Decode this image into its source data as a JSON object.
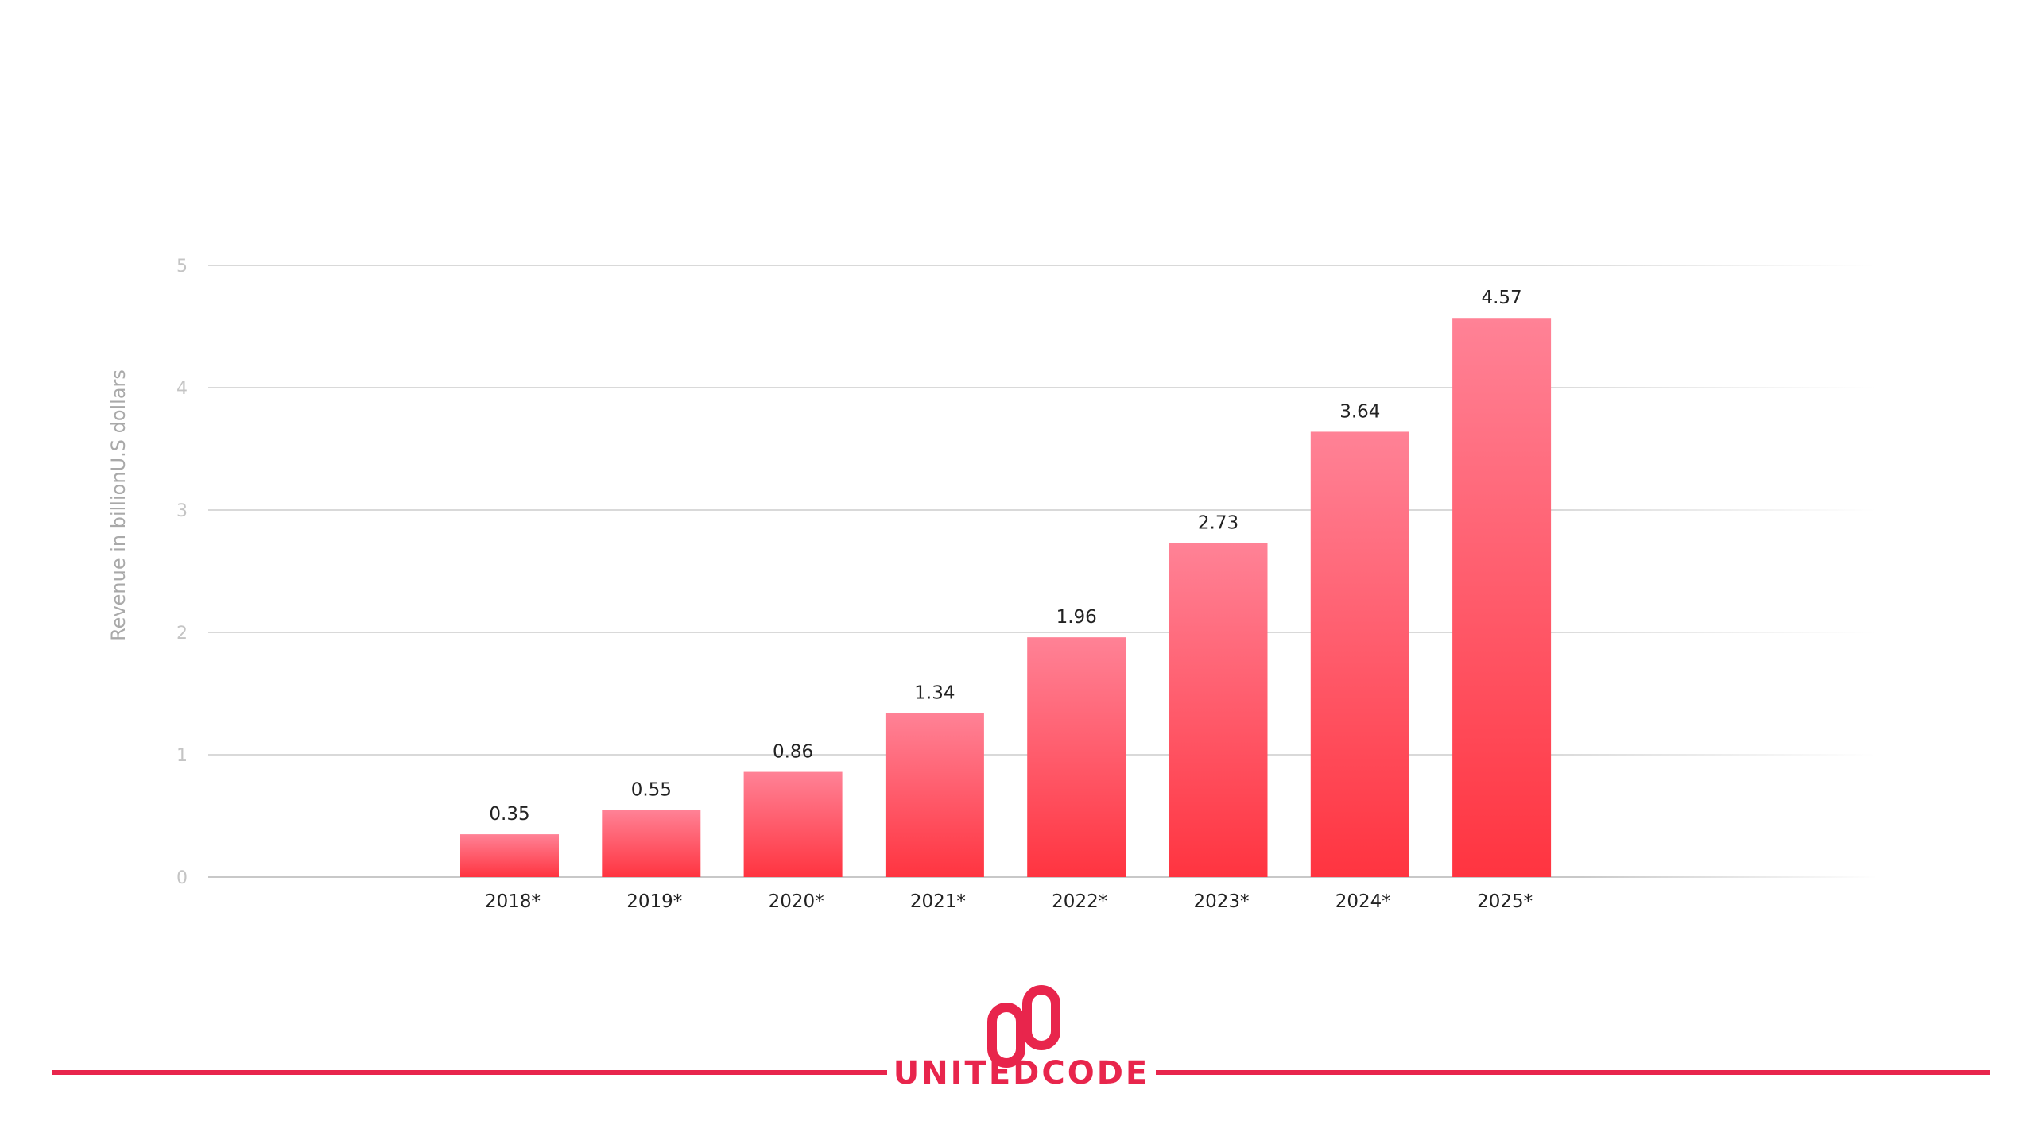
{
  "chart_data": {
    "type": "bar",
    "categories": [
      "2018*",
      "2019*",
      "2020*",
      "2021*",
      "2022*",
      "2023*",
      "2024*",
      "2025*"
    ],
    "values": [
      0.35,
      0.55,
      0.86,
      1.34,
      1.96,
      2.73,
      3.64,
      4.57
    ],
    "value_labels": [
      "0.35",
      "0.55",
      "0.86",
      "1.34",
      "1.96",
      "2.73",
      "3.64",
      "4.57"
    ],
    "title": "",
    "xlabel": "",
    "ylabel": "Revenue in billionU.S dollars",
    "ylim": [
      0,
      5
    ],
    "yticks": [
      0,
      1,
      2,
      3,
      4,
      5
    ],
    "grid": true,
    "legend": "none",
    "bar_color_top": "#ff8296",
    "bar_color_bottom": "#ff3440"
  },
  "brand": {
    "name": "UNITEDCODE",
    "color": "#e8254c",
    "logo_icon": "unitedcode-logo-icon"
  }
}
